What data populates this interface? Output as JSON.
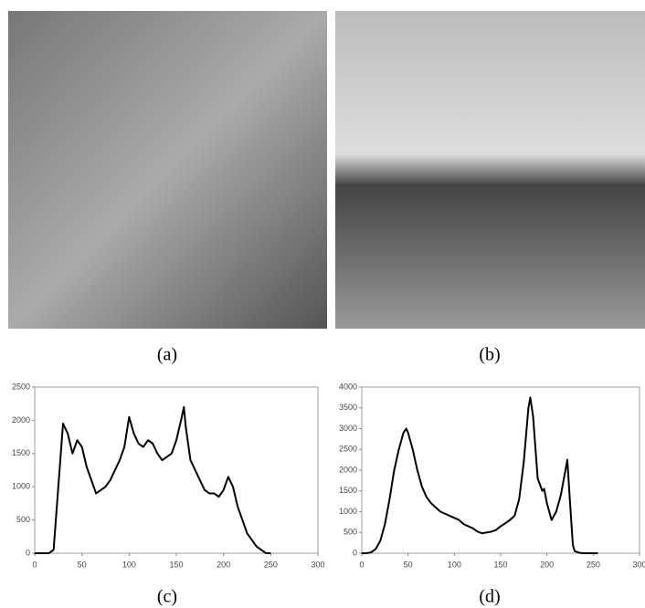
{
  "captions": [
    "(a)",
    "(b)",
    "(c)",
    "(d)"
  ],
  "chart_data": [
    {
      "type": "line",
      "color": "#000000",
      "x": [
        0,
        5,
        10,
        15,
        20,
        25,
        30,
        35,
        40,
        45,
        50,
        55,
        60,
        65,
        70,
        75,
        80,
        85,
        90,
        95,
        100,
        105,
        110,
        115,
        120,
        125,
        130,
        135,
        140,
        145,
        150,
        155,
        158,
        160,
        165,
        170,
        175,
        180,
        185,
        190,
        195,
        200,
        205,
        210,
        215,
        220,
        225,
        230,
        235,
        240,
        245,
        250
      ],
      "series": [
        {
          "values": [
            0,
            0,
            0,
            0,
            50,
            1000,
            1950,
            1800,
            1500,
            1700,
            1600,
            1300,
            1100,
            900,
            950,
            1000,
            1100,
            1250,
            1400,
            1600,
            2050,
            1800,
            1650,
            1600,
            1700,
            1650,
            1500,
            1400,
            1450,
            1500,
            1700,
            2000,
            2200,
            1900,
            1400,
            1250,
            1100,
            950,
            900,
            900,
            850,
            950,
            1150,
            1000,
            700,
            500,
            300,
            200,
            100,
            50,
            0,
            0
          ]
        }
      ],
      "xlim": [
        0,
        300
      ],
      "xticks": [
        0,
        50,
        100,
        150,
        200,
        250,
        300
      ],
      "ylim": [
        0,
        2500
      ],
      "yticks": [
        0,
        500,
        1000,
        1500,
        2000,
        2500
      ]
    },
    {
      "type": "line",
      "color": "#000000",
      "x": [
        0,
        5,
        10,
        15,
        20,
        25,
        30,
        35,
        40,
        45,
        48,
        50,
        55,
        60,
        65,
        70,
        75,
        80,
        85,
        90,
        95,
        100,
        105,
        110,
        115,
        120,
        125,
        130,
        135,
        140,
        145,
        150,
        155,
        160,
        165,
        170,
        175,
        180,
        182,
        185,
        190,
        195,
        197,
        200,
        205,
        210,
        215,
        220,
        222,
        225,
        228,
        230,
        235,
        240,
        255
      ],
      "series": [
        {
          "values": [
            0,
            0,
            20,
            100,
            300,
            700,
            1300,
            2000,
            2500,
            2900,
            3000,
            2900,
            2500,
            2000,
            1600,
            1350,
            1200,
            1100,
            1000,
            950,
            900,
            850,
            800,
            700,
            650,
            600,
            520,
            480,
            500,
            520,
            560,
            650,
            720,
            800,
            900,
            1300,
            2200,
            3500,
            3750,
            3300,
            1800,
            1500,
            1550,
            1200,
            800,
            1000,
            1400,
            2000,
            2250,
            1200,
            200,
            50,
            10,
            0,
            0
          ]
        }
      ],
      "xlim": [
        0,
        300
      ],
      "xticks": [
        0,
        50,
        100,
        150,
        200,
        250,
        300
      ],
      "ylim": [
        0,
        4000
      ],
      "yticks": [
        0,
        500,
        1000,
        1500,
        2000,
        2500,
        3000,
        3500,
        4000
      ]
    }
  ]
}
